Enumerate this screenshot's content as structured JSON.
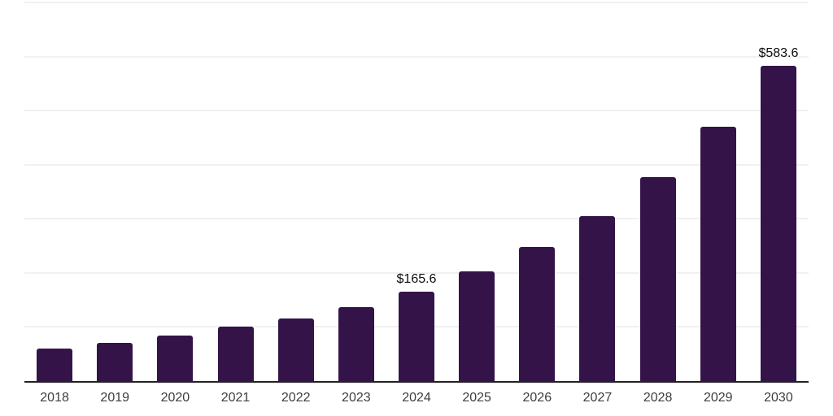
{
  "chart_data": {
    "type": "bar",
    "title": "",
    "xlabel": "",
    "ylabel": "",
    "categories": [
      "2018",
      "2019",
      "2020",
      "2021",
      "2022",
      "2023",
      "2024",
      "2025",
      "2026",
      "2027",
      "2028",
      "2029",
      "2030"
    ],
    "values": [
      59.8,
      71.2,
      84.3,
      100.1,
      116.4,
      136.5,
      165.6,
      202.8,
      248.0,
      305.6,
      376.4,
      470.2,
      583.6
    ],
    "data_labels": [
      "",
      "",
      "",
      "",
      "",
      "",
      "$165.6",
      "",
      "",
      "",
      "",
      "",
      "$583.6"
    ],
    "ylim": [
      0,
      700
    ],
    "grid_step": 100,
    "grid": true,
    "legend": false,
    "currency_prefix": "$",
    "colors": {
      "bar": "#341349",
      "axis_line": "#222222",
      "gridline": "#f1f1f1",
      "tick_label": "#3d3d3d",
      "value_label": "#0d0d0d",
      "background": "#ffffff"
    }
  }
}
